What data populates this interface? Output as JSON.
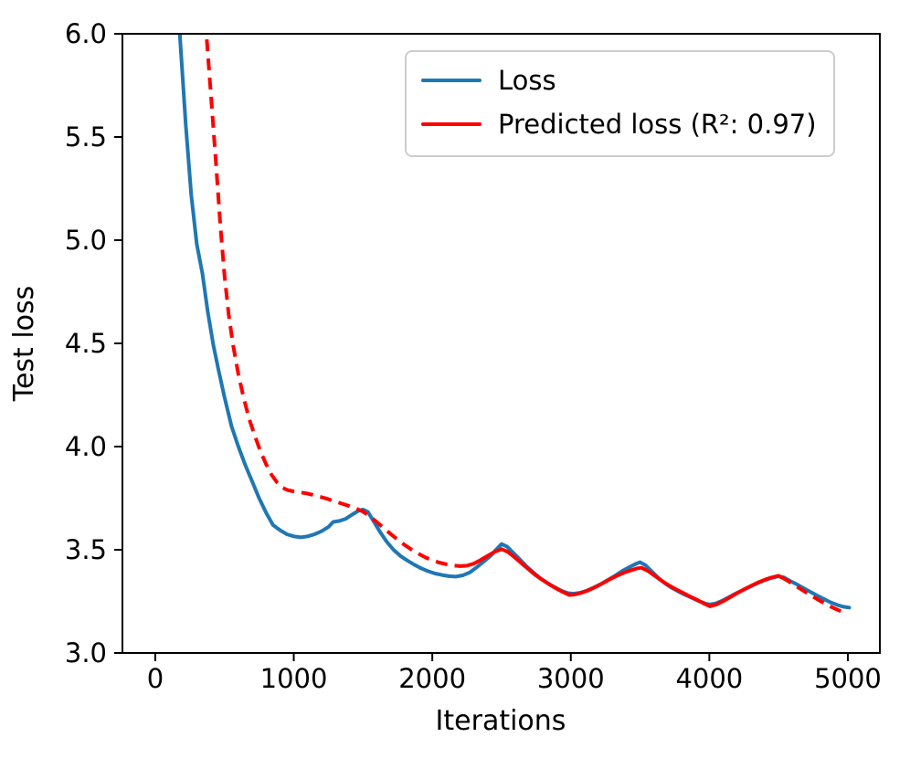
{
  "figure": {
    "background": "#ffffff",
    "text_color": "#000000",
    "spine_color": "#000000"
  },
  "chart_data": {
    "type": "line",
    "title": "",
    "xlabel": "Iterations",
    "ylabel": "Test loss",
    "xlim": [
      -237,
      5231
    ],
    "ylim": [
      3.0,
      6.0
    ],
    "grid": false,
    "legend_position": "upper right",
    "x_ticks": {
      "values": [
        0,
        1000,
        2000,
        3000,
        4000,
        5000
      ],
      "labels": [
        "0",
        "1000",
        "2000",
        "3000",
        "4000",
        "5000"
      ]
    },
    "y_ticks": {
      "values": [
        3.0,
        3.5,
        4.0,
        4.5,
        5.0,
        5.5,
        6.0
      ],
      "labels": [
        "3.0",
        "3.5",
        "4.0",
        "4.5",
        "5.0",
        "5.5",
        "6.0"
      ]
    },
    "legend": {
      "entries": [
        {
          "label": "Loss",
          "color": "#1f77b4",
          "dash": false
        },
        {
          "label": "Predicted loss (R²: 0.97)",
          "color": "#ff0000",
          "dash": false
        }
      ]
    },
    "series": [
      {
        "name": "Loss",
        "color": "#1f77b4",
        "linewidth": 4,
        "style_segments": [
          {
            "x_from": -1000,
            "x_to": 6000,
            "dashed": false
          }
        ],
        "points": [
          [
            100,
            7.0
          ],
          [
            140,
            6.45
          ],
          [
            180,
            5.97
          ],
          [
            220,
            5.56
          ],
          [
            260,
            5.22
          ],
          [
            300,
            4.98
          ],
          [
            340,
            4.84
          ],
          [
            380,
            4.65
          ],
          [
            420,
            4.49
          ],
          [
            460,
            4.36
          ],
          [
            500,
            4.24
          ],
          [
            550,
            4.1
          ],
          [
            600,
            4.0
          ],
          [
            650,
            3.91
          ],
          [
            700,
            3.83
          ],
          [
            750,
            3.75
          ],
          [
            800,
            3.68
          ],
          [
            850,
            3.62
          ],
          [
            900,
            3.595
          ],
          [
            950,
            3.575
          ],
          [
            1000,
            3.565
          ],
          [
            1050,
            3.56
          ],
          [
            1100,
            3.565
          ],
          [
            1150,
            3.575
          ],
          [
            1200,
            3.59
          ],
          [
            1250,
            3.61
          ],
          [
            1285,
            3.635
          ],
          [
            1330,
            3.64
          ],
          [
            1375,
            3.65
          ],
          [
            1420,
            3.67
          ],
          [
            1465,
            3.688
          ],
          [
            1500,
            3.695
          ],
          [
            1535,
            3.683
          ],
          [
            1575,
            3.64
          ],
          [
            1620,
            3.59
          ],
          [
            1670,
            3.54
          ],
          [
            1720,
            3.5
          ],
          [
            1770,
            3.47
          ],
          [
            1820,
            3.448
          ],
          [
            1870,
            3.428
          ],
          [
            1920,
            3.41
          ],
          [
            1970,
            3.396
          ],
          [
            2020,
            3.385
          ],
          [
            2070,
            3.378
          ],
          [
            2120,
            3.372
          ],
          [
            2170,
            3.37
          ],
          [
            2220,
            3.376
          ],
          [
            2270,
            3.39
          ],
          [
            2320,
            3.415
          ],
          [
            2370,
            3.442
          ],
          [
            2420,
            3.47
          ],
          [
            2460,
            3.5
          ],
          [
            2500,
            3.528
          ],
          [
            2540,
            3.515
          ],
          [
            2580,
            3.488
          ],
          [
            2630,
            3.455
          ],
          [
            2680,
            3.42
          ],
          [
            2730,
            3.39
          ],
          [
            2780,
            3.362
          ],
          [
            2830,
            3.34
          ],
          [
            2880,
            3.32
          ],
          [
            2930,
            3.302
          ],
          [
            2980,
            3.29
          ],
          [
            3020,
            3.287
          ],
          [
            3070,
            3.292
          ],
          [
            3120,
            3.303
          ],
          [
            3170,
            3.318
          ],
          [
            3220,
            3.335
          ],
          [
            3270,
            3.355
          ],
          [
            3320,
            3.375
          ],
          [
            3370,
            3.397
          ],
          [
            3420,
            3.415
          ],
          [
            3470,
            3.432
          ],
          [
            3500,
            3.44
          ],
          [
            3540,
            3.425
          ],
          [
            3580,
            3.398
          ],
          [
            3630,
            3.365
          ],
          [
            3680,
            3.337
          ],
          [
            3730,
            3.315
          ],
          [
            3780,
            3.297
          ],
          [
            3830,
            3.28
          ],
          [
            3880,
            3.265
          ],
          [
            3930,
            3.25
          ],
          [
            3970,
            3.24
          ],
          [
            4005,
            3.235
          ],
          [
            4045,
            3.24
          ],
          [
            4090,
            3.252
          ],
          [
            4140,
            3.27
          ],
          [
            4190,
            3.288
          ],
          [
            4240,
            3.304
          ],
          [
            4290,
            3.32
          ],
          [
            4340,
            3.336
          ],
          [
            4390,
            3.35
          ],
          [
            4440,
            3.362
          ],
          [
            4500,
            3.372
          ],
          [
            4540,
            3.366
          ],
          [
            4580,
            3.35
          ],
          [
            4630,
            3.333
          ],
          [
            4680,
            3.314
          ],
          [
            4730,
            3.296
          ],
          [
            4780,
            3.278
          ],
          [
            4830,
            3.26
          ],
          [
            4880,
            3.244
          ],
          [
            4930,
            3.231
          ],
          [
            4970,
            3.224
          ],
          [
            5010,
            3.22
          ]
        ]
      },
      {
        "name": "Predicted loss (R²: 0.97)",
        "color": "#ff0000",
        "linewidth": 4,
        "style_segments": [
          {
            "x_from": -1000,
            "x_to": 2230,
            "dashed": true
          },
          {
            "x_from": 2230,
            "x_to": 4515,
            "dashed": false
          },
          {
            "x_from": 4515,
            "x_to": 6000,
            "dashed": true
          }
        ],
        "points": [
          [
            280,
            6.9
          ],
          [
            320,
            6.45
          ],
          [
            360,
            6.08
          ],
          [
            400,
            5.72
          ],
          [
            440,
            5.36
          ],
          [
            470,
            5.07
          ],
          [
            500,
            4.83
          ],
          [
            530,
            4.64
          ],
          [
            560,
            4.5
          ],
          [
            600,
            4.35
          ],
          [
            640,
            4.23
          ],
          [
            680,
            4.13
          ],
          [
            720,
            4.05
          ],
          [
            760,
            3.975
          ],
          [
            800,
            3.915
          ],
          [
            840,
            3.863
          ],
          [
            880,
            3.826
          ],
          [
            920,
            3.8
          ],
          [
            960,
            3.788
          ],
          [
            1000,
            3.783
          ],
          [
            1050,
            3.778
          ],
          [
            1100,
            3.772
          ],
          [
            1150,
            3.764
          ],
          [
            1200,
            3.755
          ],
          [
            1250,
            3.745
          ],
          [
            1300,
            3.734
          ],
          [
            1350,
            3.723
          ],
          [
            1400,
            3.712
          ],
          [
            1450,
            3.7
          ],
          [
            1500,
            3.685
          ],
          [
            1550,
            3.662
          ],
          [
            1600,
            3.634
          ],
          [
            1650,
            3.605
          ],
          [
            1700,
            3.576
          ],
          [
            1750,
            3.549
          ],
          [
            1800,
            3.524
          ],
          [
            1850,
            3.501
          ],
          [
            1900,
            3.481
          ],
          [
            1950,
            3.463
          ],
          [
            2000,
            3.449
          ],
          [
            2050,
            3.438
          ],
          [
            2100,
            3.43
          ],
          [
            2150,
            3.424
          ],
          [
            2200,
            3.421
          ],
          [
            2250,
            3.423
          ],
          [
            2300,
            3.433
          ],
          [
            2350,
            3.451
          ],
          [
            2400,
            3.471
          ],
          [
            2450,
            3.49
          ],
          [
            2500,
            3.503
          ],
          [
            2545,
            3.49
          ],
          [
            2590,
            3.466
          ],
          [
            2640,
            3.437
          ],
          [
            2690,
            3.408
          ],
          [
            2740,
            3.38
          ],
          [
            2790,
            3.356
          ],
          [
            2840,
            3.334
          ],
          [
            2890,
            3.314
          ],
          [
            2940,
            3.296
          ],
          [
            2990,
            3.281
          ],
          [
            3030,
            3.283
          ],
          [
            3080,
            3.292
          ],
          [
            3130,
            3.305
          ],
          [
            3180,
            3.32
          ],
          [
            3230,
            3.338
          ],
          [
            3280,
            3.356
          ],
          [
            3330,
            3.373
          ],
          [
            3380,
            3.388
          ],
          [
            3430,
            3.4
          ],
          [
            3480,
            3.41
          ],
          [
            3510,
            3.413
          ],
          [
            3560,
            3.396
          ],
          [
            3610,
            3.372
          ],
          [
            3660,
            3.348
          ],
          [
            3710,
            3.327
          ],
          [
            3760,
            3.308
          ],
          [
            3810,
            3.291
          ],
          [
            3860,
            3.274
          ],
          [
            3910,
            3.258
          ],
          [
            3960,
            3.24
          ],
          [
            4005,
            3.226
          ],
          [
            4050,
            3.235
          ],
          [
            4100,
            3.251
          ],
          [
            4150,
            3.27
          ],
          [
            4200,
            3.29
          ],
          [
            4250,
            3.308
          ],
          [
            4300,
            3.325
          ],
          [
            4350,
            3.341
          ],
          [
            4400,
            3.355
          ],
          [
            4450,
            3.366
          ],
          [
            4500,
            3.374
          ],
          [
            4550,
            3.356
          ],
          [
            4600,
            3.335
          ],
          [
            4650,
            3.314
          ],
          [
            4700,
            3.293
          ],
          [
            4750,
            3.272
          ],
          [
            4800,
            3.252
          ],
          [
            4850,
            3.233
          ],
          [
            4900,
            3.217
          ],
          [
            4950,
            3.202
          ],
          [
            4995,
            3.19
          ]
        ]
      }
    ]
  }
}
